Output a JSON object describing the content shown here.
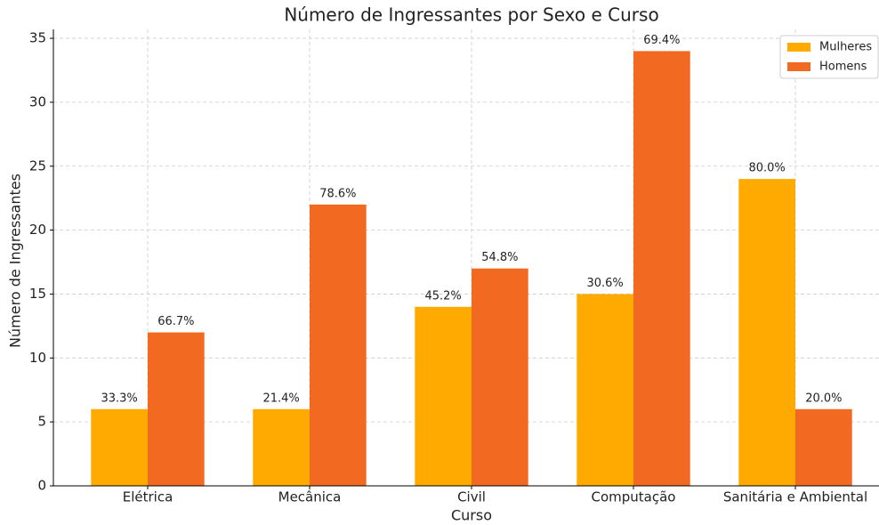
{
  "chart_data": {
    "type": "bar",
    "title": "Número de Ingressantes por Sexo e Curso",
    "xlabel": "Curso",
    "ylabel": "Número de Ingressantes",
    "categories": [
      "Elétrica",
      "Mecânica",
      "Civil",
      "Computação",
      "Sanitária e Ambiental"
    ],
    "series": [
      {
        "name": "Mulheres",
        "color": "#ffaa00",
        "values": [
          6,
          6,
          14,
          15,
          24
        ],
        "annotations": [
          "33.3%",
          "21.4%",
          "45.2%",
          "30.6%",
          "80.0%"
        ]
      },
      {
        "name": "Homens",
        "color": "#f26922",
        "values": [
          12,
          22,
          17,
          34,
          6
        ],
        "annotations": [
          "66.7%",
          "78.6%",
          "54.8%",
          "69.4%",
          "20.0%"
        ]
      }
    ],
    "ylim": [
      0,
      35.7
    ],
    "yticks": [
      0,
      5,
      10,
      15,
      20,
      25,
      30,
      35
    ],
    "grid": true,
    "legend": "upper right"
  }
}
